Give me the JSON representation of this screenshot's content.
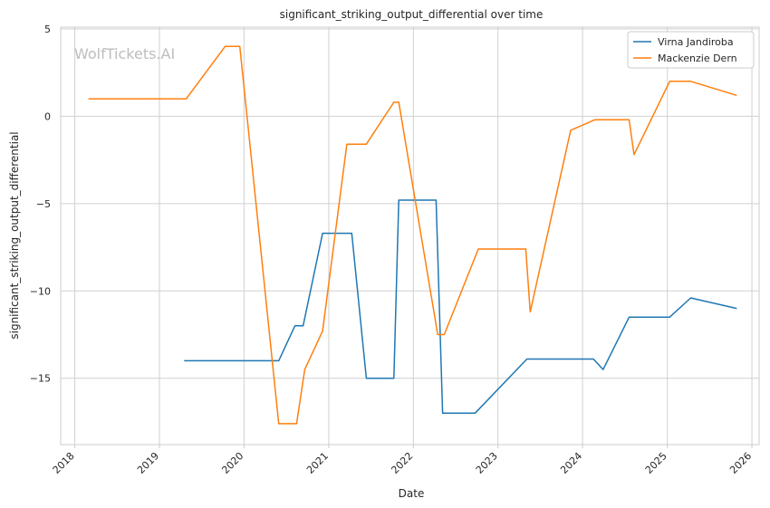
{
  "watermark": "WolfTickets.AI",
  "chart_data": {
    "type": "line",
    "title": "significant_striking_output_differential over time",
    "xlabel": "Date",
    "ylabel": "significant_striking_output_differential",
    "x_ticks": [
      "2018",
      "2019",
      "2020",
      "2021",
      "2022",
      "2023",
      "2024",
      "2025",
      "2026"
    ],
    "y_ticks": [
      5,
      0,
      -5,
      -10,
      -15
    ],
    "xlim": [
      "2017-11-01",
      "2026-02-01"
    ],
    "ylim": [
      -18.8,
      5.1
    ],
    "grid": true,
    "legend_position": "top-right",
    "series": [
      {
        "name": "Virna Jandiroba",
        "color": "#1f77b4",
        "points": [
          [
            "2019-04-20",
            -14.0
          ],
          [
            "2020-05-30",
            -14.0
          ],
          [
            "2020-08-08",
            -12.0
          ],
          [
            "2020-09-12",
            -12.0
          ],
          [
            "2020-12-05",
            -6.7
          ],
          [
            "2021-04-10",
            -6.7
          ],
          [
            "2021-06-12",
            -15.0
          ],
          [
            "2021-10-09",
            -15.0
          ],
          [
            "2021-10-30",
            -4.8
          ],
          [
            "2022-04-09",
            -4.8
          ],
          [
            "2022-05-07",
            -17.0
          ],
          [
            "2022-09-24",
            -17.0
          ],
          [
            "2023-05-06",
            -13.9
          ],
          [
            "2024-02-17",
            -13.9
          ],
          [
            "2024-03-30",
            -14.5
          ],
          [
            "2024-07-20",
            -11.5
          ],
          [
            "2025-01-11",
            -11.5
          ],
          [
            "2025-04-12",
            -10.4
          ],
          [
            "2025-10-25",
            -11.0
          ]
        ]
      },
      {
        "name": "Mackenzie Dern",
        "color": "#ff7f0e",
        "points": [
          [
            "2018-03-03",
            1.0
          ],
          [
            "2019-04-27",
            1.0
          ],
          [
            "2019-10-12",
            4.0
          ],
          [
            "2019-12-14",
            4.0
          ],
          [
            "2020-05-30",
            -17.6
          ],
          [
            "2020-08-15",
            -17.6
          ],
          [
            "2020-09-19",
            -14.5
          ],
          [
            "2020-12-05",
            -12.3
          ],
          [
            "2021-03-20",
            -1.6
          ],
          [
            "2021-06-12",
            -1.6
          ],
          [
            "2021-10-09",
            0.8
          ],
          [
            "2021-10-30",
            0.8
          ],
          [
            "2022-04-16",
            -12.5
          ],
          [
            "2022-05-14",
            -12.5
          ],
          [
            "2022-10-08",
            -7.6
          ],
          [
            "2023-05-01",
            -7.6
          ],
          [
            "2023-05-20",
            -11.2
          ],
          [
            "2023-11-11",
            -0.8
          ],
          [
            "2024-02-24",
            -0.2
          ],
          [
            "2024-07-20",
            -0.2
          ],
          [
            "2024-08-10",
            -2.2
          ],
          [
            "2025-01-11",
            2.0
          ],
          [
            "2025-04-12",
            2.0
          ],
          [
            "2025-10-25",
            1.2
          ]
        ]
      }
    ]
  }
}
